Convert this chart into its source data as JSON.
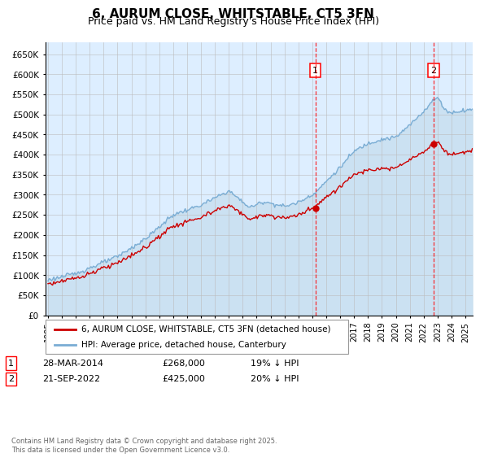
{
  "title": "6, AURUM CLOSE, WHITSTABLE, CT5 3FN",
  "subtitle": "Price paid vs. HM Land Registry's House Price Index (HPI)",
  "title_fontsize": 11,
  "subtitle_fontsize": 9,
  "hpi_color": "#7aadd4",
  "hpi_fill": "#c8dff0",
  "price_color": "#cc0000",
  "background_color": "#ddeeff",
  "plot_bg": "#ffffff",
  "grid_color": "#bbbbbb",
  "ylim": [
    0,
    680000
  ],
  "yticks": [
    0,
    50000,
    100000,
    150000,
    200000,
    250000,
    300000,
    350000,
    400000,
    450000,
    500000,
    550000,
    600000,
    650000
  ],
  "ytick_labels": [
    "£0",
    "£50K",
    "£100K",
    "£150K",
    "£200K",
    "£250K",
    "£300K",
    "£350K",
    "£400K",
    "£450K",
    "£500K",
    "£550K",
    "£600K",
    "£650K"
  ],
  "sale1_date": "28-MAR-2014",
  "sale1_price": 268000,
  "sale1_pct": "19% ↓ HPI",
  "sale1_year": 2014.22,
  "sale2_date": "21-SEP-2022",
  "sale2_price": 425000,
  "sale2_pct": "20% ↓ HPI",
  "sale2_year": 2022.72,
  "legend_line1": "6, AURUM CLOSE, WHITSTABLE, CT5 3FN (detached house)",
  "legend_line2": "HPI: Average price, detached house, Canterbury",
  "footer": "Contains HM Land Registry data © Crown copyright and database right 2025.\nThis data is licensed under the Open Government Licence v3.0.",
  "xmin": 1994.8,
  "xmax": 2025.5
}
